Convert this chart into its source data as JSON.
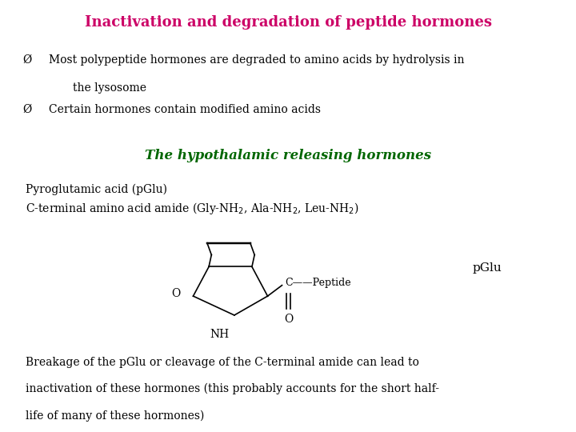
{
  "title": "Inactivation and degradation of peptide hormones",
  "title_color": "#CC0066",
  "title_fontsize": 13,
  "bullet1_line1": "Most polypeptide hormones are degraded to amino acids by hydrolysis in",
  "bullet1_line2": "the lysosome",
  "bullet2": "Certain hormones contain modified amino acids",
  "subtitle": "The hypothalamic releasing hormones",
  "subtitle_color": "#006600",
  "subtitle_fontsize": 12,
  "sub_text1": "Pyroglutamic acid (pGlu)",
  "pglu_label": "pGlu",
  "o_label": "O",
  "nh_label": "NH",
  "bottom_text_l1": "Breakage of the pGlu or cleavage of the C-terminal amide can lead to",
  "bottom_text_l2": "inactivation of these hormones (this probably accounts for the short half-",
  "bottom_text_l3": "life of many of these hormones)",
  "bg_color": "#ffffff",
  "text_color": "#000000",
  "font_family": "DejaVu Serif"
}
